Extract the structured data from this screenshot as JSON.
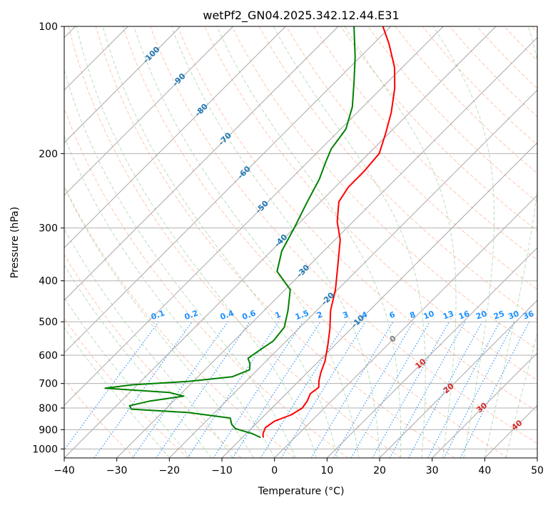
{
  "chart_data": {
    "type": "line",
    "subtype": "skew-T log-p diagram",
    "title": "wetPf2_GN04.2025.342.12.44.E31",
    "xlabel": "Temperature (°C)",
    "ylabel": "Pressure (hPa)",
    "xlim": [
      -40,
      50
    ],
    "ylim": [
      1050,
      100
    ],
    "x_ticks": [
      -40,
      -30,
      -20,
      -10,
      0,
      10,
      20,
      30,
      40,
      50
    ],
    "y_ticks": [
      100,
      200,
      300,
      400,
      500,
      600,
      700,
      800,
      900,
      1000
    ],
    "grid": true,
    "series": [
      {
        "name": "Temperature",
        "color": "#ff0000",
        "points": [
          {
            "p": 940,
            "t": -6.0
          },
          {
            "p": 920,
            "t": -6.8
          },
          {
            "p": 890,
            "t": -7.5
          },
          {
            "p": 860,
            "t": -7.0
          },
          {
            "p": 830,
            "t": -5.0
          },
          {
            "p": 800,
            "t": -4.2
          },
          {
            "p": 770,
            "t": -4.6
          },
          {
            "p": 740,
            "t": -5.4
          },
          {
            "p": 715,
            "t": -5.0
          },
          {
            "p": 690,
            "t": -6.2
          },
          {
            "p": 660,
            "t": -7.4
          },
          {
            "p": 620,
            "t": -8.8
          },
          {
            "p": 570,
            "t": -11.2
          },
          {
            "p": 520,
            "t": -14.0
          },
          {
            "p": 470,
            "t": -17.4
          },
          {
            "p": 420,
            "t": -20.4
          },
          {
            "p": 370,
            "t": -24.4
          },
          {
            "p": 320,
            "t": -29.0
          },
          {
            "p": 290,
            "t": -33.0
          },
          {
            "p": 260,
            "t": -36.5
          },
          {
            "p": 240,
            "t": -37.5
          },
          {
            "p": 220,
            "t": -37.5
          },
          {
            "p": 200,
            "t": -38.0
          },
          {
            "p": 180,
            "t": -40.5
          },
          {
            "p": 160,
            "t": -43.5
          },
          {
            "p": 140,
            "t": -47.5
          },
          {
            "p": 125,
            "t": -51.5
          },
          {
            "p": 110,
            "t": -57.0
          },
          {
            "p": 100,
            "t": -61.5
          }
        ]
      },
      {
        "name": "Dewpoint",
        "color": "#008000",
        "points": [
          {
            "p": 940,
            "t": -6.5
          },
          {
            "p": 920,
            "t": -8.8
          },
          {
            "p": 895,
            "t": -13.0
          },
          {
            "p": 875,
            "t": -14.5
          },
          {
            "p": 845,
            "t": -16.0
          },
          {
            "p": 820,
            "t": -25.0
          },
          {
            "p": 805,
            "t": -36.5
          },
          {
            "p": 790,
            "t": -37.5
          },
          {
            "p": 770,
            "t": -34.5
          },
          {
            "p": 750,
            "t": -29.0
          },
          {
            "p": 735,
            "t": -32.5
          },
          {
            "p": 718,
            "t": -45.5
          },
          {
            "p": 705,
            "t": -41.0
          },
          {
            "p": 692,
            "t": -31.0
          },
          {
            "p": 675,
            "t": -23.5
          },
          {
            "p": 650,
            "t": -21.5
          },
          {
            "p": 630,
            "t": -22.5
          },
          {
            "p": 610,
            "t": -24.0
          },
          {
            "p": 590,
            "t": -23.5
          },
          {
            "p": 555,
            "t": -22.5
          },
          {
            "p": 515,
            "t": -23.0
          },
          {
            "p": 470,
            "t": -25.5
          },
          {
            "p": 420,
            "t": -29.0
          },
          {
            "p": 380,
            "t": -35.0
          },
          {
            "p": 340,
            "t": -38.0
          },
          {
            "p": 300,
            "t": -40.0
          },
          {
            "p": 260,
            "t": -42.5
          },
          {
            "p": 230,
            "t": -44.5
          },
          {
            "p": 210,
            "t": -46.5
          },
          {
            "p": 195,
            "t": -48.0
          },
          {
            "p": 175,
            "t": -49.0
          },
          {
            "p": 155,
            "t": -52.0
          },
          {
            "p": 135,
            "t": -56.5
          },
          {
            "p": 118,
            "t": -61.0
          },
          {
            "p": 100,
            "t": -67.0
          }
        ]
      }
    ],
    "isotherm_labels": [
      {
        "text": "-100",
        "t": -100,
        "p": 117
      },
      {
        "text": "-90",
        "t": -90,
        "p": 134
      },
      {
        "text": "-80",
        "t": -80,
        "p": 158
      },
      {
        "text": "-70",
        "t": -70,
        "p": 185
      },
      {
        "text": "-60",
        "t": -60,
        "p": 222
      },
      {
        "text": "-50",
        "t": -50,
        "p": 268
      },
      {
        "text": "-40",
        "t": -40,
        "p": 322
      },
      {
        "text": "-30",
        "t": -30,
        "p": 380
      },
      {
        "text": "-20",
        "t": -20,
        "p": 442
      },
      {
        "text": "-10",
        "t": -10,
        "p": 500
      }
    ],
    "mixing_ratio_labels": [
      "0.1",
      "0.2",
      "0.4",
      "0.6",
      "1",
      "1.5",
      "2",
      "3",
      "4",
      "6",
      "8",
      "10",
      "13",
      "16",
      "20",
      "25",
      "30",
      "36"
    ],
    "mixing_ratio_label_pressure": 500,
    "moist_adiabat_labels": [
      {
        "text": "0",
        "t": 0,
        "p": 550
      },
      {
        "text": "10",
        "t": 10,
        "p": 630
      },
      {
        "text": "20",
        "t": 20,
        "p": 720
      },
      {
        "text": "30",
        "t": 30,
        "p": 800
      },
      {
        "text": "40",
        "t": 40,
        "p": 880
      }
    ],
    "colors": {
      "temperature": "#ff0000",
      "dewpoint": "#008000",
      "isotherm_label": "#1f77b4",
      "mixing_ratio": "#1e90ff",
      "dry_adiabat": "#ffa07a",
      "moist_adiabat": "#90c890",
      "moist_adiabat_label_hot": "#d62728",
      "zero_label": "#808080",
      "curved_reference": "#d2b48c"
    }
  }
}
